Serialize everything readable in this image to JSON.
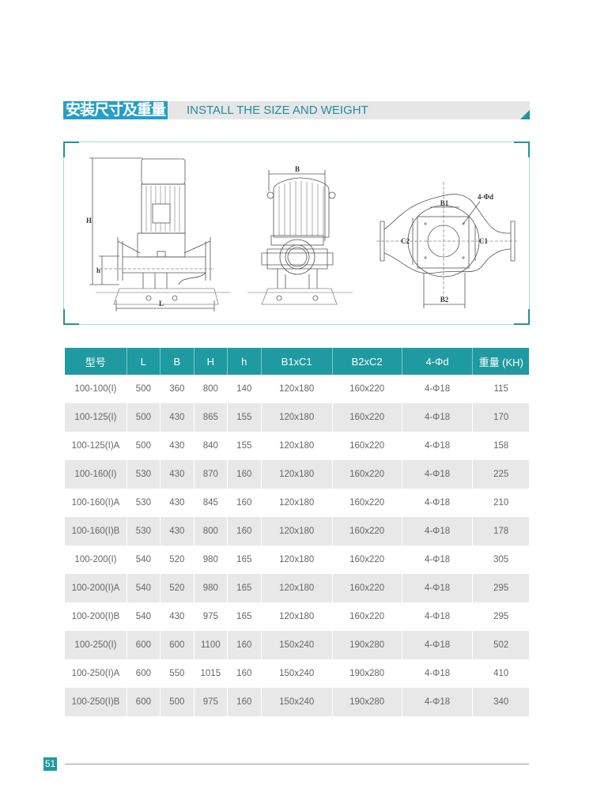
{
  "header": {
    "title_cn": "安装尺寸及重量",
    "title_en": "INSTALL THE SIZE AND WEIGHT"
  },
  "drawing": {
    "labels": {
      "H": "H",
      "h": "h",
      "L": "L",
      "B": "B",
      "B1": "B1",
      "C1": "C1",
      "B2": "B2",
      "C2": "C2",
      "holes": "4-Φd"
    }
  },
  "table": {
    "columns": [
      "型号",
      "L",
      "B",
      "H",
      "h",
      "B1xC1",
      "B2xC2",
      "4-Φd",
      "重量 (KH)"
    ],
    "rows": [
      [
        "100-100(I)",
        "500",
        "360",
        "800",
        "140",
        "120x180",
        "160x220",
        "4-Φ18",
        "115"
      ],
      [
        "100-125(I)",
        "500",
        "430",
        "865",
        "155",
        "120x180",
        "160x220",
        "4-Φ18",
        "170"
      ],
      [
        "100-125(I)A",
        "500",
        "430",
        "840",
        "155",
        "120x180",
        "160x220",
        "4-Φ18",
        "158"
      ],
      [
        "100-160(I)",
        "530",
        "430",
        "870",
        "160",
        "120x180",
        "160x220",
        "4-Φ18",
        "225"
      ],
      [
        "100-160(I)A",
        "530",
        "430",
        "845",
        "160",
        "120x180",
        "160x220",
        "4-Φ18",
        "210"
      ],
      [
        "100-160(I)B",
        "530",
        "430",
        "800",
        "160",
        "120x180",
        "160x220",
        "4-Φ18",
        "178"
      ],
      [
        "100-200(I)",
        "540",
        "520",
        "980",
        "165",
        "120x180",
        "160x220",
        "4-Φ18",
        "305"
      ],
      [
        "100-200(I)A",
        "540",
        "520",
        "980",
        "165",
        "120x180",
        "160x220",
        "4-Φ18",
        "295"
      ],
      [
        "100-200(I)B",
        "540",
        "430",
        "975",
        "165",
        "120x180",
        "160x220",
        "4-Φ18",
        "295"
      ],
      [
        "100-250(I)",
        "600",
        "600",
        "1100",
        "160",
        "150x240",
        "190x280",
        "4-Φ18",
        "502"
      ],
      [
        "100-250(I)A",
        "600",
        "550",
        "1015",
        "160",
        "150x240",
        "190x280",
        "4-Φ18",
        "410"
      ],
      [
        "100-250(I)B",
        "600",
        "500",
        "975",
        "160",
        "150x240",
        "190x280",
        "4-Φ18",
        "340"
      ]
    ]
  },
  "footer": {
    "page_number": "51"
  },
  "colors": {
    "teal": "#1f9aa0",
    "title_blue": "#259fc7",
    "row_alt": "#e8e8e9"
  }
}
